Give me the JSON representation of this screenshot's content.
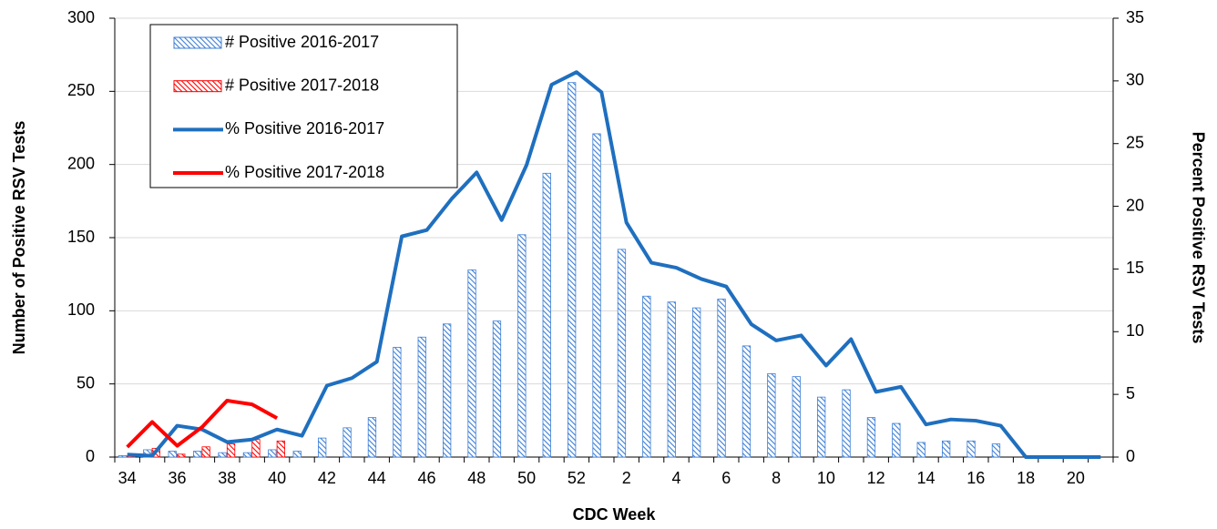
{
  "chart_data": {
    "type": "bar",
    "xlabel": "CDC Week",
    "ylabel": "Number of Positive RSV Tests",
    "y2label": "Percent Positive RSV Tests",
    "categories": [
      "34",
      null,
      "36",
      null,
      "38",
      null,
      "40",
      null,
      "42",
      null,
      "44",
      null,
      "46",
      null,
      "48",
      null,
      "50",
      null,
      "52",
      null,
      "2",
      null,
      "4",
      null,
      "6",
      null,
      "8",
      null,
      "10",
      null,
      "12",
      null,
      "14",
      null,
      "16",
      null,
      "18",
      null,
      "20",
      null
    ],
    "ylim": [
      0,
      300
    ],
    "yticks": [
      0,
      50,
      100,
      150,
      200,
      250,
      300
    ],
    "y2lim": [
      0,
      35
    ],
    "y2ticks": [
      0,
      5,
      10,
      15,
      20,
      25,
      30,
      35
    ],
    "grid": true,
    "legend": "upper left",
    "series": [
      {
        "name": "# Positive 2016-2017",
        "type": "bar",
        "color": "#3d7fd6",
        "values": [
          1,
          5,
          4,
          4,
          3,
          3,
          5,
          4,
          13,
          20,
          27,
          75,
          82,
          91,
          128,
          93,
          152,
          194,
          256,
          221,
          142,
          110,
          106,
          102,
          108,
          76,
          57,
          55,
          41,
          46,
          27,
          23,
          10,
          11,
          11,
          9,
          0,
          0,
          0,
          0
        ]
      },
      {
        "name": "# Positive 2017-2018",
        "type": "bar",
        "color": "#ff0000",
        "values": [
          1,
          6,
          2,
          7,
          9,
          12,
          11,
          null,
          null,
          null,
          null,
          null,
          null,
          null,
          null,
          null,
          null,
          null,
          null,
          null,
          null,
          null,
          null,
          null,
          null,
          null,
          null,
          null,
          null,
          null,
          null,
          null,
          null,
          null,
          null,
          null,
          null,
          null,
          null,
          null
        ]
      },
      {
        "name": "% Positive 2016-2017",
        "type": "line",
        "axis": "y2",
        "color": "#1f6fbf",
        "values": [
          0.2,
          0.1,
          2.5,
          2.2,
          1.2,
          1.4,
          2.2,
          1.7,
          5.7,
          6.3,
          7.6,
          17.6,
          18.1,
          20.6,
          22.7,
          18.9,
          23.3,
          29.7,
          30.7,
          29.1,
          18.7,
          15.5,
          15.1,
          14.2,
          13.6,
          10.6,
          9.3,
          9.7,
          7.3,
          9.4,
          5.2,
          5.6,
          2.6,
          3.0,
          2.9,
          2.5,
          0,
          0,
          0,
          0
        ]
      },
      {
        "name": "% Positive 2017-2018",
        "type": "line",
        "axis": "y2",
        "color": "#ff0000",
        "values": [
          0.8,
          2.8,
          0.9,
          2.4,
          4.5,
          4.2,
          3.1,
          null,
          null,
          null,
          null,
          null,
          null,
          null,
          null,
          null,
          null,
          null,
          null,
          null,
          null,
          null,
          null,
          null,
          null,
          null,
          null,
          null,
          null,
          null,
          null,
          null,
          null,
          null,
          null,
          null,
          null,
          null,
          null,
          null
        ]
      }
    ]
  }
}
